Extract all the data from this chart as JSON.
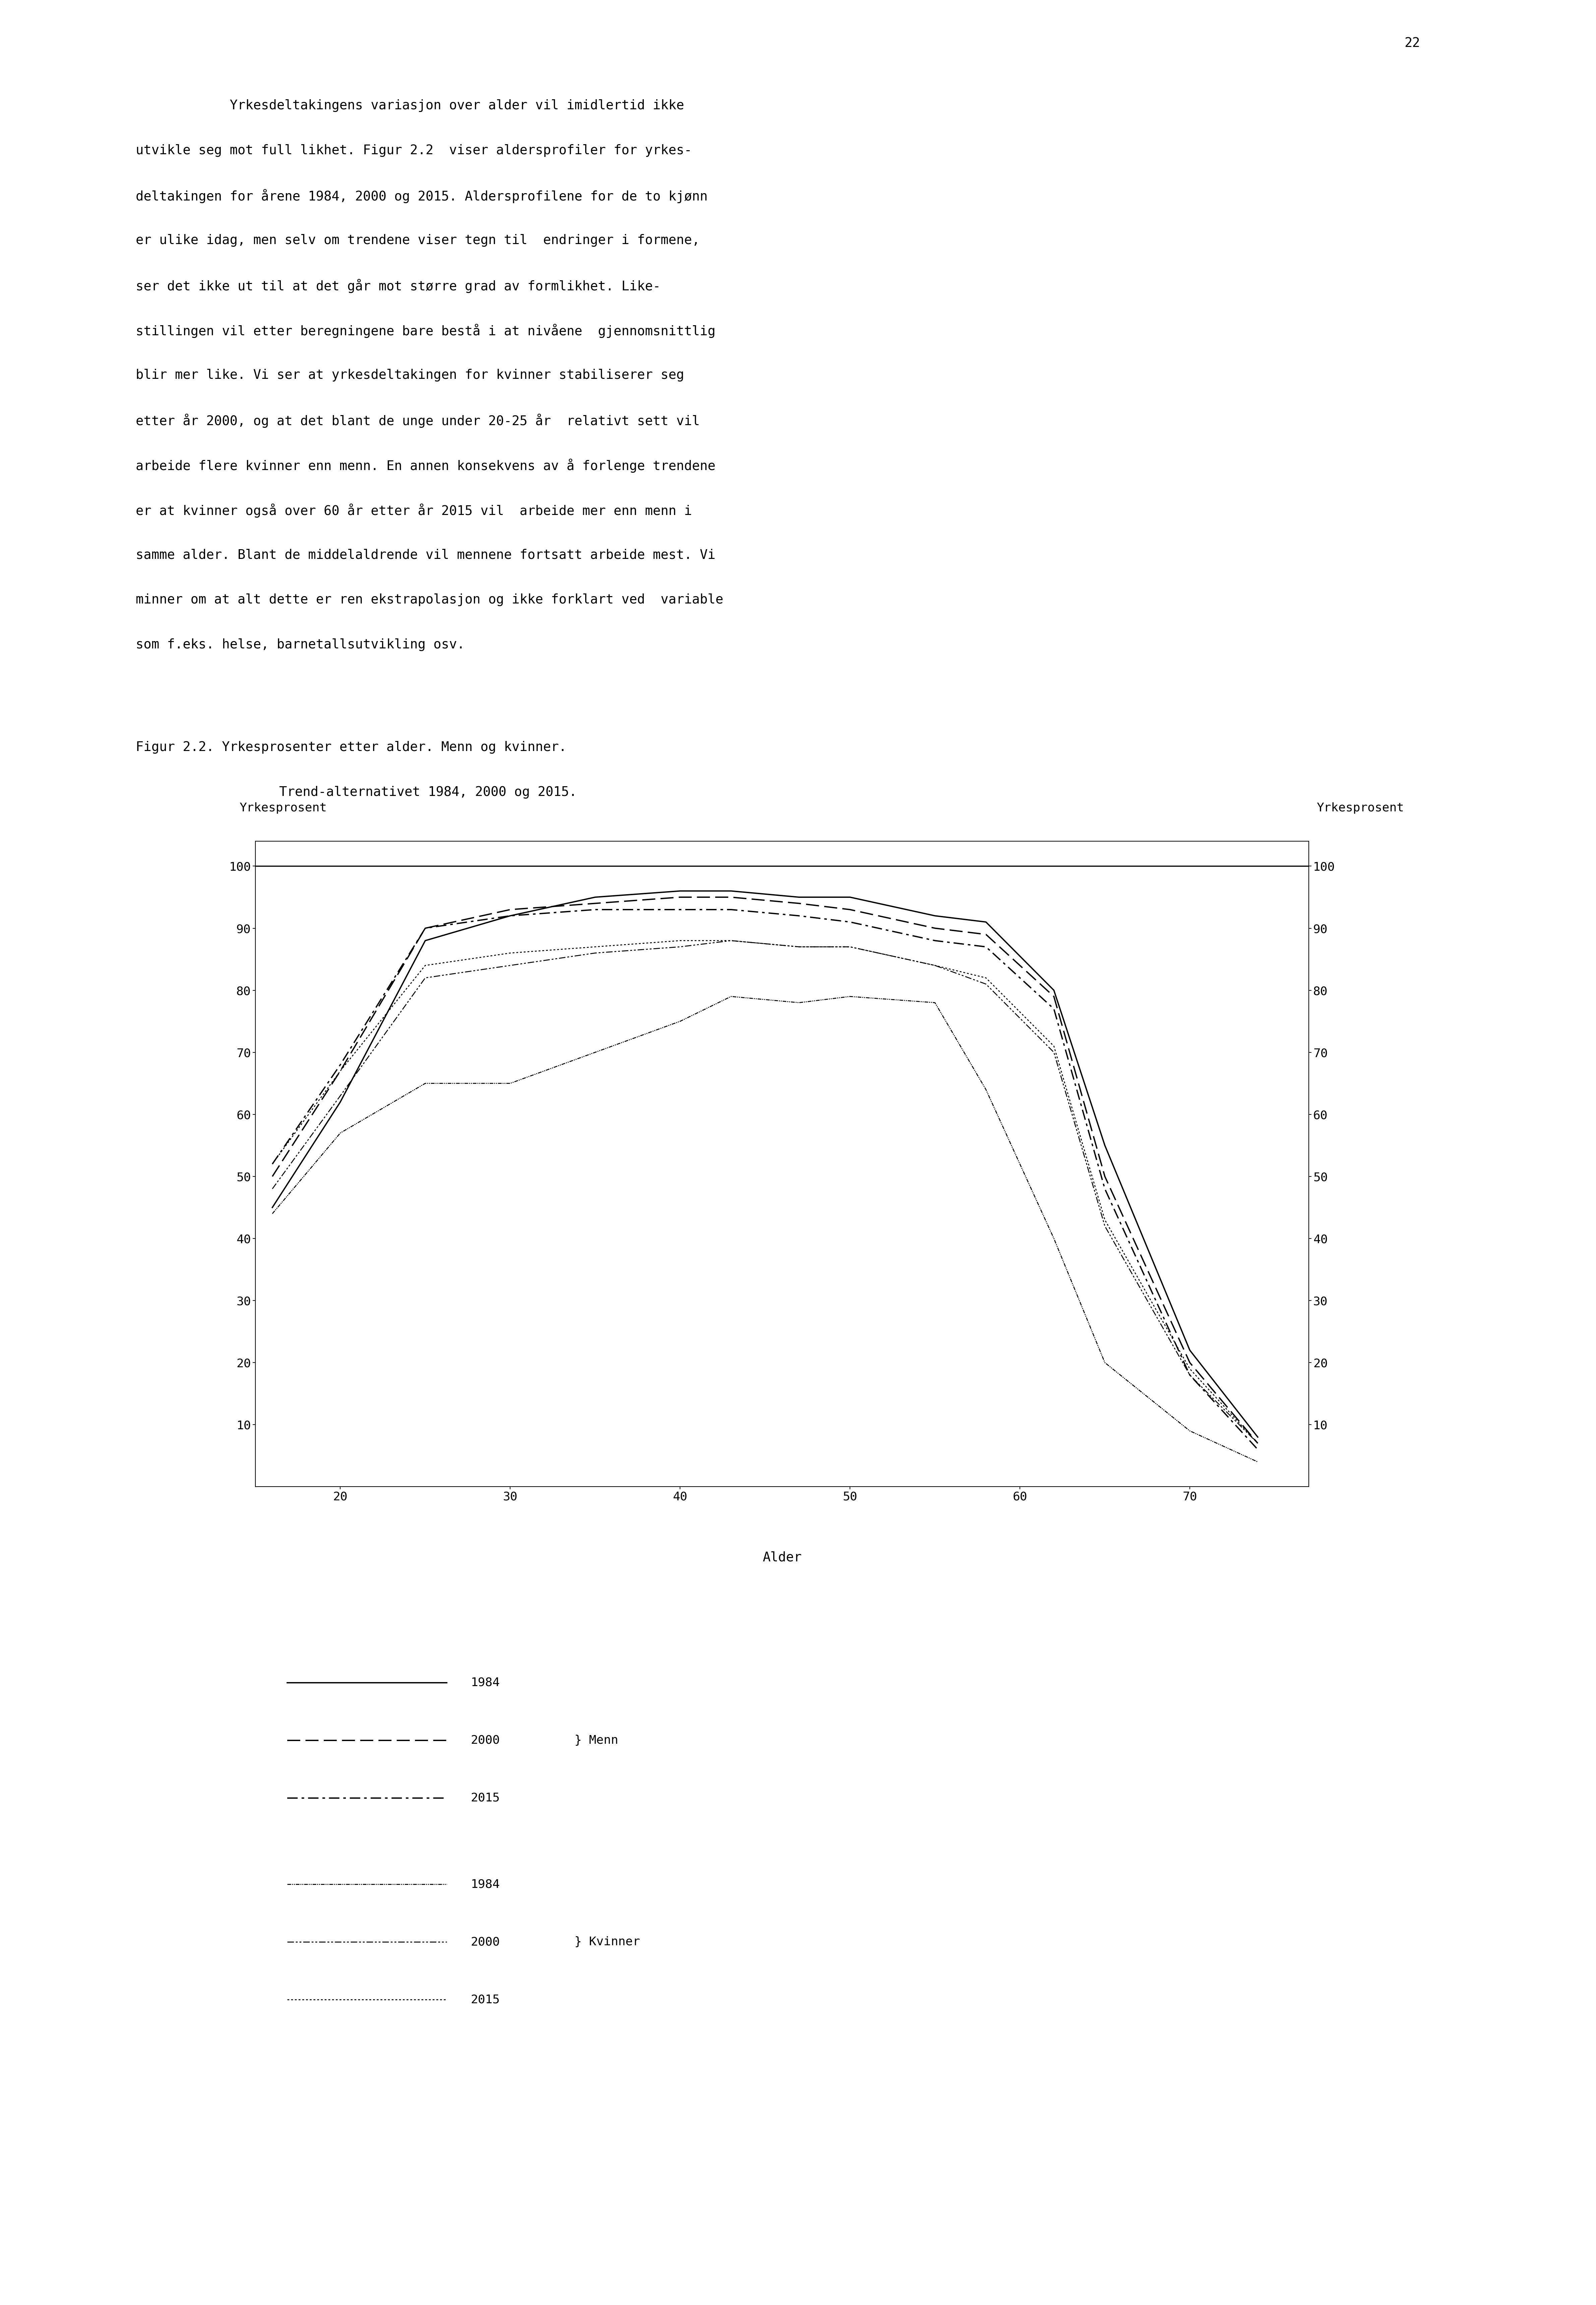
{
  "title_line1": "Figur 2.2. Yrkesprosenter etter alder. Menn og kvinner.",
  "title_line2": "Trend-alternativet 1984, 2000 og 2015.",
  "page_number": "22",
  "text_lines": [
    "            Yrkesdeltakingens variasjon over alder vil imidlertid ikke",
    "utvikle seg mot full likhet. Figur 2.2  viser aldersprofiler for yrkes-",
    "deltakingen for årene 1984, 2000 og 2015. Aldersprofilene for de to kjønn",
    "er ulike idag, men selv om trendene viser tegn til  endringer i formene,",
    "ser det ikke ut til at det går mot større grad av formlikhet. Like-",
    "stillingen vil etter beregningene bare bestå i at nivåene  gjennomsnittlig",
    "blir mer like. Vi ser at yrkesdeltakingen for kvinner stabiliserer seg",
    "etter år 2000, og at det blant de unge under 20-25 år  relativt sett vil",
    "arbeide flere kvinner enn menn. En annen konsekvens av å forlenge trendene",
    "er at kvinner også over 60 år etter år 2015 vil  arbeide mer enn menn i",
    "samme alder. Blant de middelaldrende vil mennene fortsatt arbeide mest. Vi",
    "minner om at alt dette er ren ekstrapolasjon og ikke forklart ved  variable",
    "som f.eks. helse, barnetallsutvikling osv."
  ],
  "xlabel": "Alder",
  "ylabel_left": "Yrkesprosent",
  "ylabel_right": "Yrkesprosent",
  "xlim": [
    15,
    77
  ],
  "ylim": [
    0,
    104
  ],
  "xticks": [
    20,
    30,
    40,
    50,
    60,
    70
  ],
  "yticks": [
    10,
    20,
    30,
    40,
    50,
    60,
    70,
    80,
    90,
    100
  ],
  "men_1984_x": [
    16,
    20,
    25,
    30,
    35,
    40,
    43,
    47,
    50,
    55,
    58,
    62,
    65,
    70,
    74
  ],
  "men_1984_y": [
    45,
    62,
    88,
    92,
    95,
    96,
    96,
    95,
    95,
    92,
    91,
    80,
    55,
    22,
    8
  ],
  "men_2000_x": [
    16,
    20,
    25,
    30,
    35,
    40,
    43,
    47,
    50,
    55,
    58,
    62,
    65,
    70,
    74
  ],
  "men_2000_y": [
    50,
    67,
    90,
    93,
    94,
    95,
    95,
    94,
    93,
    90,
    89,
    79,
    50,
    20,
    7
  ],
  "men_2015_x": [
    16,
    20,
    25,
    30,
    35,
    40,
    43,
    47,
    50,
    55,
    58,
    62,
    65,
    70,
    74
  ],
  "men_2015_y": [
    52,
    68,
    90,
    92,
    93,
    93,
    93,
    92,
    91,
    88,
    87,
    77,
    48,
    18,
    6
  ],
  "women_1984_x": [
    16,
    20,
    25,
    30,
    35,
    38,
    40,
    43,
    47,
    50,
    55,
    58,
    62,
    65,
    70,
    74
  ],
  "women_1984_y": [
    44,
    57,
    65,
    65,
    70,
    73,
    75,
    79,
    78,
    79,
    78,
    64,
    40,
    20,
    9,
    4
  ],
  "women_2000_x": [
    16,
    20,
    25,
    30,
    35,
    40,
    43,
    47,
    50,
    55,
    58,
    62,
    65,
    70,
    74
  ],
  "women_2000_y": [
    48,
    63,
    82,
    84,
    86,
    87,
    88,
    87,
    87,
    84,
    81,
    70,
    42,
    18,
    7
  ],
  "women_2015_x": [
    16,
    20,
    25,
    30,
    35,
    40,
    43,
    47,
    50,
    55,
    58,
    62,
    65,
    70,
    74
  ],
  "women_2015_y": [
    52,
    67,
    84,
    86,
    87,
    88,
    88,
    87,
    87,
    84,
    82,
    71,
    43,
    19,
    7
  ],
  "background_color": "#ffffff",
  "line_color": "#000000",
  "fig_text_fontsize": 28,
  "axis_tick_fontsize": 26,
  "axis_label_fontsize": 28,
  "caption_fontsize": 28
}
